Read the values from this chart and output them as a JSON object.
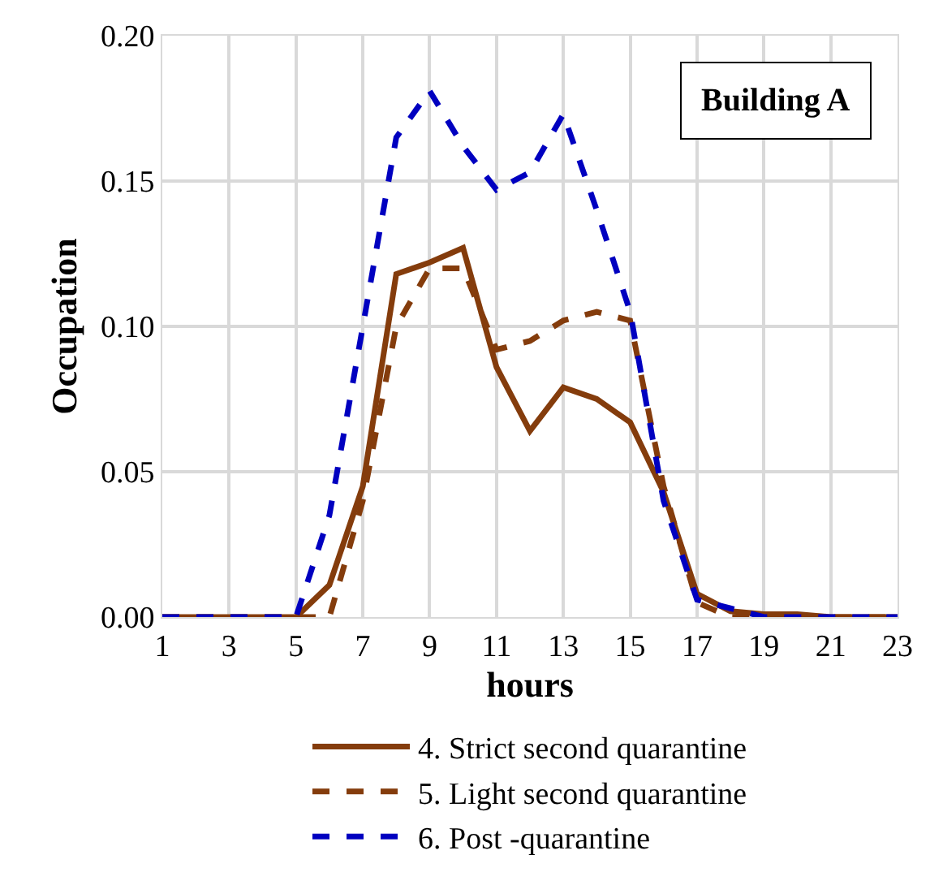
{
  "chart_data": {
    "type": "line",
    "xlabel": "hours",
    "ylabel": "Occupation",
    "annotations": [
      "Building A"
    ],
    "x": [
      1,
      2,
      3,
      4,
      5,
      6,
      7,
      8,
      9,
      10,
      11,
      12,
      13,
      14,
      15,
      16,
      17,
      18,
      19,
      20,
      21,
      22,
      23
    ],
    "series": [
      {
        "name": "4. Strict second quarantine",
        "color": "#843c0c",
        "line_style": "solid",
        "values": [
          0,
          0,
          0,
          0,
          0,
          0.011,
          0.045,
          0.118,
          0.122,
          0.127,
          0.086,
          0.064,
          0.079,
          0.075,
          0.067,
          0.043,
          0.008,
          0.002,
          0.001,
          0.001,
          0,
          0,
          0
        ]
      },
      {
        "name": "5. Light second quarantine",
        "color": "#843c0c",
        "line_style": "dashed",
        "values": [
          0,
          0,
          0,
          0,
          0,
          0,
          0.04,
          0.1,
          0.12,
          0.12,
          0.092,
          0.095,
          0.102,
          0.105,
          0.102,
          0.045,
          0.005,
          0,
          0,
          0,
          0,
          0,
          0
        ]
      },
      {
        "name": "6. Post -quarantine",
        "color": "#0000c0",
        "line_style": "dashed",
        "values": [
          0,
          0,
          0,
          0,
          0,
          0.035,
          0.1,
          0.165,
          0.181,
          0.162,
          0.147,
          0.153,
          0.173,
          0.14,
          0.105,
          0.04,
          0.006,
          0.003,
          0,
          0,
          0,
          0,
          0
        ]
      }
    ],
    "xlim": [
      1,
      23
    ],
    "xticks": [
      1,
      3,
      5,
      7,
      9,
      11,
      13,
      15,
      17,
      19,
      21,
      23
    ],
    "ylim": [
      0,
      0.2
    ],
    "yticks": [
      {
        "value": 0,
        "label": "0.00"
      },
      {
        "value": 0.05,
        "label": "0.05"
      },
      {
        "value": 0.1,
        "label": "0.10"
      },
      {
        "value": 0.15,
        "label": "0.15"
      },
      {
        "value": 0.2,
        "label": "0.20"
      }
    ],
    "grid": true,
    "legend": "bottom",
    "marker": "none"
  }
}
